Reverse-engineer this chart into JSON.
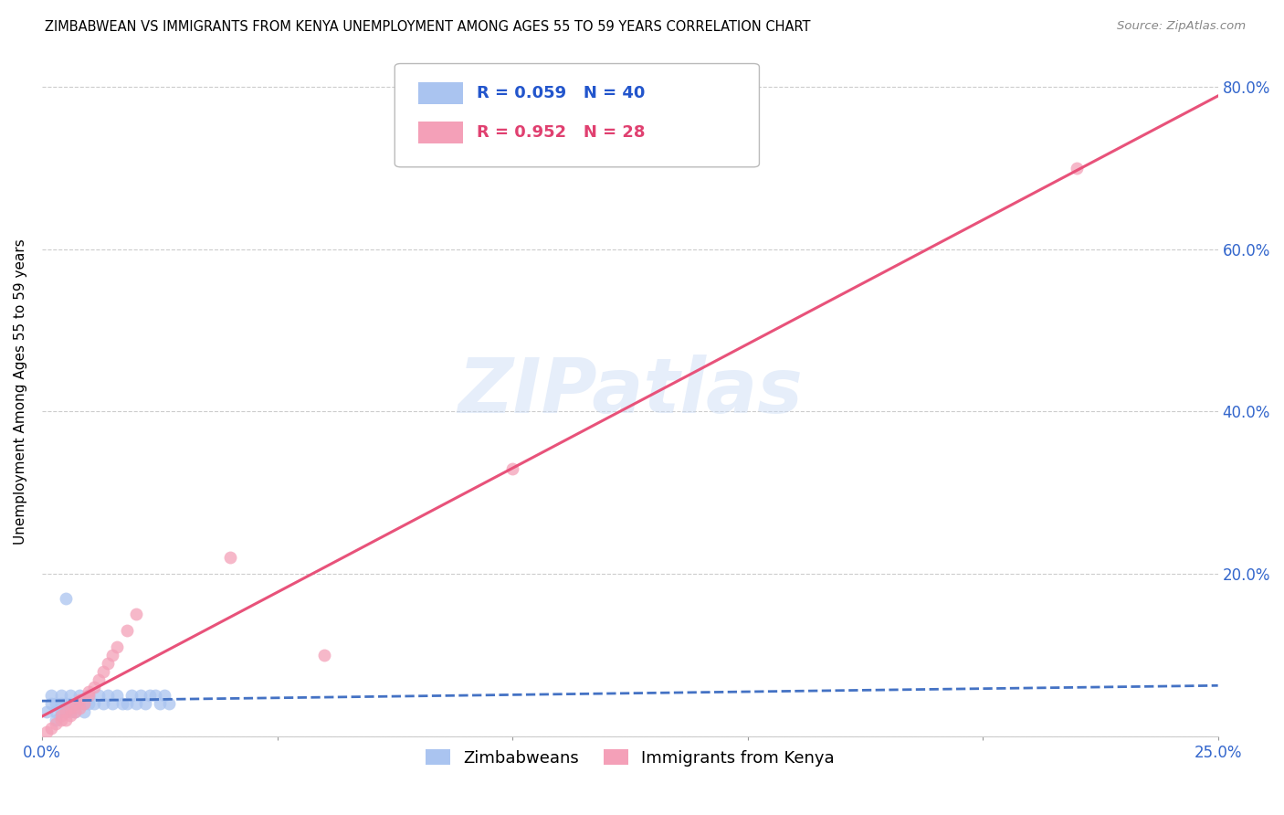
{
  "title": "ZIMBABWEAN VS IMMIGRANTS FROM KENYA UNEMPLOYMENT AMONG AGES 55 TO 59 YEARS CORRELATION CHART",
  "source": "Source: ZipAtlas.com",
  "ylabel": "Unemployment Among Ages 55 to 59 years",
  "xlim": [
    0.0,
    0.25
  ],
  "ylim": [
    0.0,
    0.85
  ],
  "xticks": [
    0.0,
    0.05,
    0.1,
    0.15,
    0.2,
    0.25
  ],
  "yticks": [
    0.0,
    0.2,
    0.4,
    0.6,
    0.8
  ],
  "right_ytick_labels": [
    "",
    "20.0%",
    "40.0%",
    "60.0%",
    "80.0%"
  ],
  "xtick_labels": [
    "0.0%",
    "",
    "",
    "",
    "",
    "25.0%"
  ],
  "watermark": "ZIPatlas",
  "zimbabweans": {
    "x": [
      0.001,
      0.002,
      0.002,
      0.003,
      0.003,
      0.003,
      0.004,
      0.004,
      0.004,
      0.005,
      0.005,
      0.005,
      0.006,
      0.006,
      0.006,
      0.007,
      0.007,
      0.008,
      0.008,
      0.009,
      0.009,
      0.01,
      0.01,
      0.011,
      0.012,
      0.013,
      0.014,
      0.015,
      0.016,
      0.017,
      0.018,
      0.019,
      0.02,
      0.021,
      0.022,
      0.023,
      0.024,
      0.025,
      0.026,
      0.027
    ],
    "y": [
      0.03,
      0.04,
      0.05,
      0.02,
      0.03,
      0.04,
      0.03,
      0.04,
      0.05,
      0.03,
      0.04,
      0.17,
      0.03,
      0.04,
      0.05,
      0.03,
      0.04,
      0.04,
      0.05,
      0.03,
      0.04,
      0.04,
      0.05,
      0.04,
      0.05,
      0.04,
      0.05,
      0.04,
      0.05,
      0.04,
      0.04,
      0.05,
      0.04,
      0.05,
      0.04,
      0.05,
      0.05,
      0.04,
      0.05,
      0.04
    ],
    "R": 0.059,
    "N": 40,
    "color": "#aac4f0",
    "line_color": "#4472c4",
    "line_style": "--"
  },
  "kenya": {
    "x": [
      0.001,
      0.002,
      0.003,
      0.004,
      0.004,
      0.005,
      0.005,
      0.006,
      0.006,
      0.007,
      0.007,
      0.008,
      0.008,
      0.009,
      0.01,
      0.01,
      0.011,
      0.012,
      0.013,
      0.014,
      0.015,
      0.016,
      0.018,
      0.02,
      0.04,
      0.06,
      0.1,
      0.22
    ],
    "y": [
      0.005,
      0.01,
      0.015,
      0.02,
      0.025,
      0.02,
      0.03,
      0.025,
      0.035,
      0.03,
      0.04,
      0.035,
      0.045,
      0.04,
      0.05,
      0.055,
      0.06,
      0.07,
      0.08,
      0.09,
      0.1,
      0.11,
      0.13,
      0.15,
      0.22,
      0.1,
      0.33,
      0.7
    ],
    "R": 0.952,
    "N": 28,
    "color": "#f4a0b8",
    "line_color": "#e8527a",
    "line_style": "-"
  },
  "legend": {
    "zimbabweans_label": "Zimbabweans",
    "kenya_label": "Immigrants from Kenya"
  }
}
